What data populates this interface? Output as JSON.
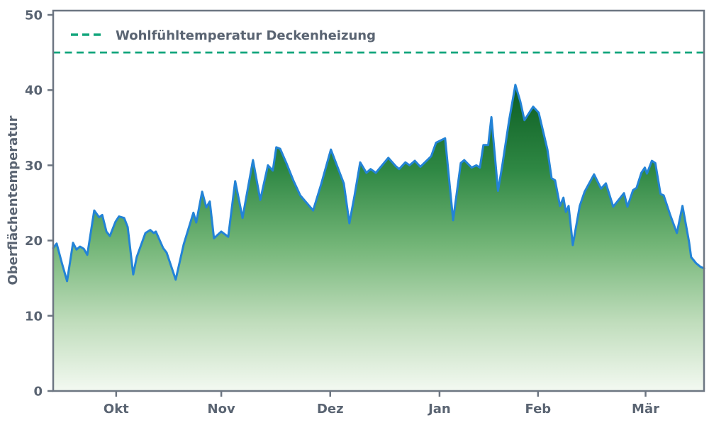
{
  "figure": {
    "background": "#ffffff"
  },
  "chart_data": {
    "type": "area",
    "title": "",
    "xlabel": "",
    "ylabel": "Oberflächentemperatur",
    "ylim": [
      0,
      50.6
    ],
    "yticks": [
      0,
      10,
      20,
      30,
      40,
      50
    ],
    "x_unit": "days (daily surface temperature, mid-September to mid-March)",
    "x_range_days": [
      0,
      187
    ],
    "xticks": [
      {
        "day": 18.1,
        "label": "Okt"
      },
      {
        "day": 48.3,
        "label": "Nov"
      },
      {
        "day": 79.6,
        "label": "Dez"
      },
      {
        "day": 111.0,
        "label": "Jan"
      },
      {
        "day": 139.3,
        "label": "Feb"
      },
      {
        "day": 170.2,
        "label": "Mär"
      }
    ],
    "grid": false,
    "legend_position": "upper-left",
    "reference_line": {
      "label": "Wohlfühltemperatur Deckenheizung",
      "value": 45,
      "style": "dashed",
      "color": "#12a57c"
    },
    "series": [
      {
        "name": "Oberflächentemperatur",
        "line_color": "#2383d6",
        "points": [
          [
            0,
            19.0
          ],
          [
            1,
            19.6
          ],
          [
            2.5,
            17.0
          ],
          [
            4,
            14.6
          ],
          [
            5.7,
            19.7
          ],
          [
            6.7,
            18.8
          ],
          [
            7.7,
            19.2
          ],
          [
            8.8,
            18.9
          ],
          [
            9.8,
            18.1
          ],
          [
            11.8,
            24.0
          ],
          [
            13.2,
            23.1
          ],
          [
            14.1,
            23.4
          ],
          [
            15.3,
            21.2
          ],
          [
            16.3,
            20.6
          ],
          [
            17.9,
            22.5
          ],
          [
            18.9,
            23.2
          ],
          [
            20.4,
            23.0
          ],
          [
            21.4,
            21.8
          ],
          [
            23,
            15.5
          ],
          [
            24,
            17.8
          ],
          [
            26.5,
            21.0
          ],
          [
            27.9,
            21.4
          ],
          [
            28.9,
            21.0
          ],
          [
            29.5,
            21.2
          ],
          [
            31.6,
            19.0
          ],
          [
            32.6,
            18.4
          ],
          [
            35.2,
            14.8
          ],
          [
            37.5,
            19.5
          ],
          [
            40.3,
            23.7
          ],
          [
            41.1,
            22.4
          ],
          [
            42.8,
            26.5
          ],
          [
            44,
            24.4
          ],
          [
            45,
            25.2
          ],
          [
            46.2,
            20.3
          ],
          [
            48.3,
            21.2
          ],
          [
            50.3,
            20.5
          ],
          [
            52.3,
            27.9
          ],
          [
            54.4,
            23.0
          ],
          [
            57.4,
            30.7
          ],
          [
            59.5,
            25.4
          ],
          [
            61.7,
            30.0
          ],
          [
            63.1,
            29.3
          ],
          [
            64.1,
            32.4
          ],
          [
            65.2,
            32.2
          ],
          [
            67,
            30.3
          ],
          [
            69,
            28.0
          ],
          [
            71,
            26.0
          ],
          [
            74.7,
            24.0
          ],
          [
            77,
            27.5
          ],
          [
            79.8,
            32.1
          ],
          [
            82.5,
            28.8
          ],
          [
            83.5,
            27.6
          ],
          [
            85.1,
            22.3
          ],
          [
            86.6,
            26.0
          ],
          [
            88.2,
            30.4
          ],
          [
            90,
            29.0
          ],
          [
            91.2,
            29.5
          ],
          [
            92.7,
            29.0
          ],
          [
            96.3,
            31.0
          ],
          [
            98.4,
            29.9
          ],
          [
            99.4,
            29.5
          ],
          [
            101.2,
            30.4
          ],
          [
            102.4,
            30.0
          ],
          [
            103.9,
            30.6
          ],
          [
            105.5,
            29.8
          ],
          [
            108.6,
            31.2
          ],
          [
            110,
            33.0
          ],
          [
            112.6,
            33.6
          ],
          [
            114.9,
            22.7
          ],
          [
            117.1,
            30.3
          ],
          [
            118.1,
            30.7
          ],
          [
            120.2,
            29.7
          ],
          [
            121.6,
            30.0
          ],
          [
            122.6,
            29.7
          ],
          [
            123.6,
            32.7
          ],
          [
            125,
            32.7
          ],
          [
            125.9,
            36.4
          ],
          [
            127.8,
            26.6
          ],
          [
            129,
            29.9
          ],
          [
            131,
            36.0
          ],
          [
            132.8,
            40.7
          ],
          [
            134.2,
            38.5
          ],
          [
            135.4,
            36.0
          ],
          [
            137.9,
            37.8
          ],
          [
            139.5,
            37.0
          ],
          [
            142,
            32.1
          ],
          [
            143.2,
            28.3
          ],
          [
            144.2,
            28.0
          ],
          [
            145.6,
            24.6
          ],
          [
            146.6,
            25.7
          ],
          [
            147.3,
            23.8
          ],
          [
            148.1,
            24.6
          ],
          [
            149.3,
            19.4
          ],
          [
            151.3,
            24.6
          ],
          [
            152.7,
            26.5
          ],
          [
            155.4,
            28.8
          ],
          [
            157.4,
            26.9
          ],
          [
            158.8,
            27.6
          ],
          [
            160.9,
            24.5
          ],
          [
            164,
            26.3
          ],
          [
            165,
            24.5
          ],
          [
            166.6,
            26.7
          ],
          [
            167.6,
            27.0
          ],
          [
            169,
            29.0
          ],
          [
            170,
            29.7
          ],
          [
            170.6,
            28.9
          ],
          [
            172,
            30.6
          ],
          [
            173,
            30.3
          ],
          [
            174.5,
            26.2
          ],
          [
            175.4,
            26.0
          ],
          [
            177.2,
            23.5
          ],
          [
            179.2,
            21.0
          ],
          [
            180.8,
            24.6
          ],
          [
            182.7,
            19.8
          ],
          [
            183.3,
            17.8
          ],
          [
            184.7,
            17.0
          ],
          [
            186,
            16.5
          ],
          [
            187,
            16.3
          ]
        ]
      }
    ],
    "colors": {
      "axis": "#6d7682",
      "text": "#5a6472",
      "line": "#2383d6",
      "reference": "#12a57c"
    },
    "fill_gradient_stops": [
      [
        "0%",
        "#06491a"
      ],
      [
        "22%",
        "#0f6126"
      ],
      [
        "42%",
        "#2f8844"
      ],
      [
        "62%",
        "#74b678"
      ],
      [
        "82%",
        "#c0ddbc"
      ],
      [
        "100%",
        "#f3f9f1"
      ]
    ]
  }
}
